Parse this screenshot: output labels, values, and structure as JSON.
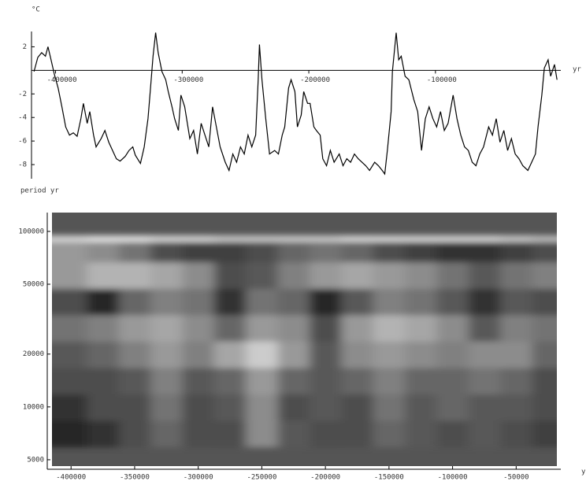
{
  "chart_data": [
    {
      "type": "line",
      "y_label": "°C",
      "x_label": "yr",
      "x": [
        -417000,
        -414000,
        -411000,
        -408000,
        -406000,
        -404000,
        -401000,
        -398000,
        -395000,
        -392000,
        -389000,
        -386000,
        -383000,
        -380000,
        -378000,
        -375000,
        -373000,
        -370000,
        -368000,
        -364000,
        -361000,
        -358000,
        -355000,
        -352000,
        -349000,
        -345000,
        -342000,
        -339000,
        -337000,
        -333000,
        -330000,
        -327000,
        -325000,
        -323000,
        -321000,
        -319000,
        -316000,
        -313000,
        -311000,
        -308000,
        -306000,
        -303000,
        -301000,
        -298000,
        -294000,
        -291000,
        -288000,
        -285000,
        -282000,
        -279000,
        -276000,
        -273000,
        -270000,
        -266000,
        -263000,
        -260000,
        -257000,
        -254000,
        -251000,
        -248000,
        -245000,
        -242000,
        -240000,
        -239000,
        -237000,
        -234000,
        -231000,
        -227000,
        -224000,
        -221000,
        -219000,
        -216000,
        -214000,
        -211000,
        -209000,
        -206000,
        -204000,
        -201000,
        -199000,
        -196000,
        -194000,
        -191000,
        -189000,
        -186000,
        -183000,
        -180000,
        -176000,
        -173000,
        -170000,
        -167000,
        -164000,
        -161000,
        -158000,
        -155000,
        -152000,
        -148000,
        -145000,
        -142000,
        -140000,
        -138000,
        -135000,
        -134000,
        -131000,
        -129000,
        -127000,
        -124000,
        -121000,
        -117000,
        -114000,
        -111000,
        -108000,
        -105000,
        -102000,
        -99000,
        -96000,
        -93000,
        -90000,
        -86000,
        -83000,
        -80000,
        -77000,
        -74000,
        -71000,
        -68000,
        -65000,
        -62000,
        -58000,
        -55000,
        -52000,
        -49000,
        -46000,
        -43000,
        -40000,
        -37000,
        -34000,
        -31000,
        -27000,
        -24000,
        -21000,
        -19000,
        -16000,
        -14000,
        -11000,
        -9000,
        -6000,
        -4000
      ],
      "values": [
        -0.1,
        1.1,
        1.5,
        1.2,
        2.0,
        1.1,
        -0.3,
        -1.5,
        -3.1,
        -4.8,
        -5.5,
        -5.3,
        -5.6,
        -4.1,
        -2.8,
        -4.5,
        -3.5,
        -5.5,
        -6.5,
        -5.8,
        -5.1,
        -6.1,
        -6.8,
        -7.5,
        -7.7,
        -7.3,
        -6.8,
        -6.5,
        -7.2,
        -7.9,
        -6.5,
        -4.1,
        -1.5,
        1.2,
        3.2,
        1.5,
        -0.1,
        -0.8,
        -1.8,
        -3.1,
        -4.1,
        -5.1,
        -2.1,
        -3.1,
        -5.8,
        -5.1,
        -7.1,
        -4.5,
        -5.5,
        -6.5,
        -3.1,
        -4.8,
        -6.5,
        -7.8,
        -8.5,
        -7.1,
        -7.8,
        -6.5,
        -7.1,
        -5.5,
        -6.5,
        -5.5,
        -0.8,
        2.2,
        -0.8,
        -4.1,
        -7.1,
        -6.8,
        -7.1,
        -5.5,
        -4.8,
        -1.5,
        -0.8,
        -1.8,
        -4.8,
        -3.8,
        -1.8,
        -2.8,
        -2.8,
        -4.8,
        -5.1,
        -5.5,
        -7.5,
        -8.1,
        -6.8,
        -7.8,
        -7.1,
        -8.1,
        -7.5,
        -7.8,
        -7.1,
        -7.5,
        -7.8,
        -8.1,
        -8.5,
        -7.8,
        -8.1,
        -8.5,
        -8.8,
        -6.8,
        -3.5,
        -0.1,
        3.2,
        0.9,
        1.2,
        -0.5,
        -0.8,
        -2.5,
        -3.5,
        -6.8,
        -4.1,
        -3.1,
        -4.1,
        -4.8,
        -3.5,
        -5.1,
        -4.5,
        -2.1,
        -4.1,
        -5.5,
        -6.5,
        -6.8,
        -7.8,
        -8.1,
        -7.1,
        -6.5,
        -4.8,
        -5.5,
        -4.1,
        -6.1,
        -5.1,
        -6.8,
        -5.8,
        -7.1,
        -7.5,
        -8.1,
        -8.5,
        -7.8,
        -7.1,
        -4.8,
        -2.1,
        0.2,
        0.9,
        -0.5,
        0.5,
        -0.8
      ],
      "color": "#000000",
      "xlim": [
        -419000,
        -1000
      ],
      "xticks": [
        -400000,
        -300000,
        -200000,
        -100000
      ],
      "ylim": [
        -9.2,
        3.3
      ],
      "yticks": [
        2,
        -2,
        -4,
        -6,
        -8
      ]
    },
    {
      "type": "heatmap",
      "y_label": "period yr",
      "x_label": "y",
      "y_log": true,
      "x": [
        -400000,
        -375000,
        -350000,
        -325000,
        -300000,
        -275000,
        -250000,
        -225000,
        -200000,
        -175000,
        -150000,
        -125000,
        -100000,
        -75000,
        -50000,
        -25000
      ],
      "y": [
        5000,
        7000,
        10000,
        14000,
        20000,
        28000,
        40000,
        56000,
        80000,
        112000
      ],
      "z": [
        [
          0.2,
          0.25,
          0.3,
          0.35,
          0.3,
          0.25,
          0.5,
          0.3,
          0.25,
          0.3,
          0.35,
          0.3,
          0.3,
          0.3,
          0.25,
          0.2
        ],
        [
          0.15,
          0.2,
          0.3,
          0.4,
          0.3,
          0.3,
          0.55,
          0.35,
          0.3,
          0.3,
          0.4,
          0.35,
          0.3,
          0.35,
          0.3,
          0.25
        ],
        [
          0.2,
          0.3,
          0.3,
          0.45,
          0.3,
          0.35,
          0.55,
          0.3,
          0.35,
          0.3,
          0.45,
          0.35,
          0.4,
          0.35,
          0.35,
          0.3
        ],
        [
          0.3,
          0.3,
          0.35,
          0.5,
          0.35,
          0.4,
          0.6,
          0.4,
          0.35,
          0.4,
          0.5,
          0.4,
          0.4,
          0.45,
          0.4,
          0.3
        ],
        [
          0.35,
          0.4,
          0.5,
          0.6,
          0.5,
          0.65,
          0.8,
          0.6,
          0.35,
          0.55,
          0.6,
          0.55,
          0.5,
          0.55,
          0.55,
          0.4
        ],
        [
          0.45,
          0.5,
          0.6,
          0.65,
          0.55,
          0.4,
          0.6,
          0.55,
          0.3,
          0.6,
          0.7,
          0.65,
          0.55,
          0.35,
          0.5,
          0.45
        ],
        [
          0.3,
          0.15,
          0.4,
          0.5,
          0.45,
          0.2,
          0.45,
          0.4,
          0.15,
          0.35,
          0.5,
          0.45,
          0.35,
          0.2,
          0.35,
          0.3
        ],
        [
          0.6,
          0.7,
          0.7,
          0.65,
          0.55,
          0.3,
          0.35,
          0.5,
          0.6,
          0.65,
          0.6,
          0.55,
          0.45,
          0.35,
          0.45,
          0.5
        ],
        [
          0.6,
          0.55,
          0.45,
          0.3,
          0.25,
          0.25,
          0.3,
          0.4,
          0.45,
          0.4,
          0.3,
          0.25,
          0.2,
          0.2,
          0.25,
          0.3
        ],
        [
          0.85,
          0.9,
          0.9,
          0.85,
          0.85,
          0.8,
          0.8,
          0.8,
          0.8,
          0.85,
          0.85,
          0.85,
          0.85,
          0.85,
          0.8,
          0.75
        ]
      ],
      "xlim": [
        -415000,
        -18000
      ],
      "xticks": [
        -400000,
        -350000,
        -300000,
        -250000,
        -200000,
        -150000,
        -100000,
        -50000
      ],
      "ylim": [
        4600,
        128000
      ],
      "yticks": [
        5000,
        10000,
        20000,
        50000,
        100000
      ]
    }
  ]
}
